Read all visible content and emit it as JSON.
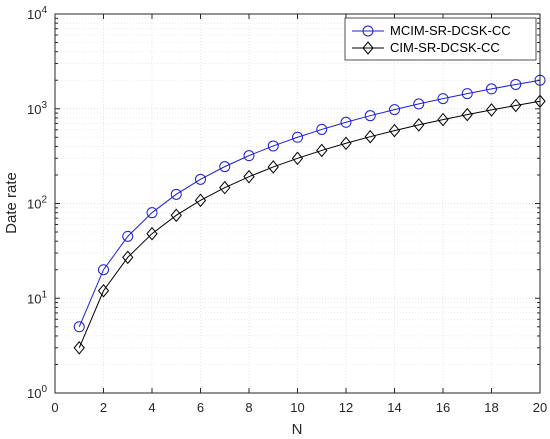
{
  "chart_data": {
    "type": "line",
    "title": "",
    "xlabel": "N",
    "ylabel": "Date rate",
    "xlim": [
      0,
      20
    ],
    "ylim": [
      1,
      10000
    ],
    "yscale": "log",
    "grid": true,
    "legend_position": "top-right",
    "x_ticks": [
      "0",
      "2",
      "4",
      "6",
      "8",
      "10",
      "12",
      "14",
      "16",
      "18",
      "20"
    ],
    "x_tick_values": [
      0,
      2,
      4,
      6,
      8,
      10,
      12,
      14,
      16,
      18,
      20
    ],
    "y_ticks": [
      {
        "base": "10",
        "exp": "0",
        "value": 1
      },
      {
        "base": "10",
        "exp": "1",
        "value": 10
      },
      {
        "base": "10",
        "exp": "2",
        "value": 100
      },
      {
        "base": "10",
        "exp": "3",
        "value": 1000
      },
      {
        "base": "10",
        "exp": "4",
        "value": 10000
      }
    ],
    "x": [
      1,
      2,
      3,
      4,
      5,
      6,
      7,
      8,
      9,
      10,
      11,
      12,
      13,
      14,
      15,
      16,
      17,
      18,
      19,
      20
    ],
    "series": [
      {
        "name": "MCIM-SR-DCSK-CC",
        "color": "#1f1fd0",
        "marker": "circle",
        "values": [
          5,
          20,
          45,
          80,
          125,
          180,
          245,
          320,
          405,
          500,
          605,
          720,
          845,
          980,
          1125,
          1280,
          1445,
          1620,
          1805,
          2000
        ]
      },
      {
        "name": "CIM-SR-DCSK-CC",
        "color": "#000000",
        "marker": "diamond",
        "values": [
          3,
          12,
          27,
          48,
          75,
          108,
          147,
          192,
          243,
          300,
          363,
          432,
          507,
          588,
          675,
          768,
          867,
          972,
          1083,
          1200
        ]
      }
    ]
  }
}
